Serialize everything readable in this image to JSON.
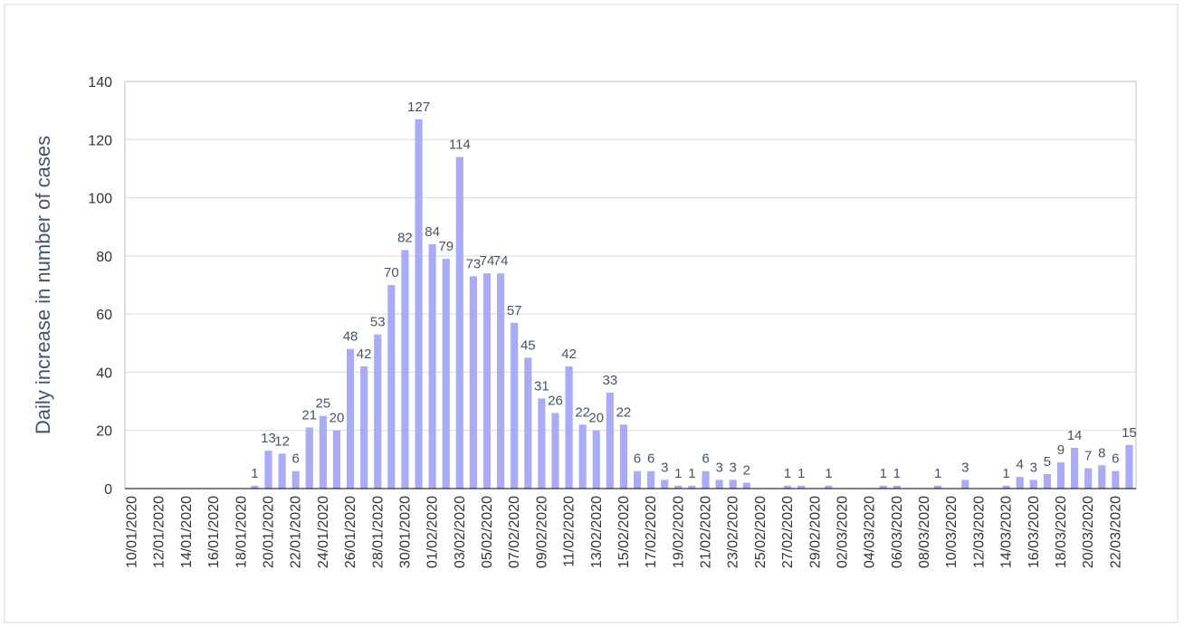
{
  "chart_data": {
    "type": "bar",
    "ylabel": "Daily increase in number of cases",
    "color": "#a9acf5",
    "categories": [
      "10/01/2020",
      null,
      "12/01/2020",
      null,
      "14/01/2020",
      null,
      "16/01/2020",
      null,
      "18/01/2020",
      null,
      "20/01/2020",
      null,
      "22/01/2020",
      null,
      "24/01/2020",
      null,
      "26/01/2020",
      null,
      "28/01/2020",
      null,
      "30/01/2020",
      null,
      "01/02/2020",
      null,
      "03/02/2020",
      null,
      "05/02/2020",
      null,
      "07/02/2020",
      null,
      "09/02/2020",
      null,
      "11/02/2020",
      null,
      "13/02/2020",
      null,
      "15/02/2020",
      null,
      "17/02/2020",
      null,
      "19/02/2020",
      null,
      "21/02/2020",
      null,
      "23/02/2020",
      null,
      "25/02/2020",
      null,
      "27/02/2020",
      null,
      "29/02/2020",
      null,
      "02/03/2020",
      null,
      "04/03/2020",
      null,
      "06/03/2020",
      null,
      "08/03/2020",
      null,
      "10/03/2020",
      null,
      "12/03/2020",
      null,
      "14/03/2020",
      null,
      "16/03/2020",
      null,
      "18/03/2020",
      null,
      "20/03/2020",
      null,
      "22/03/2020",
      null
    ],
    "values": [
      0,
      0,
      0,
      0,
      0,
      0,
      0,
      0,
      0,
      1,
      13,
      12,
      6,
      21,
      25,
      20,
      48,
      42,
      53,
      70,
      82,
      127,
      84,
      79,
      114,
      73,
      74,
      74,
      57,
      45,
      31,
      26,
      42,
      22,
      20,
      33,
      22,
      6,
      6,
      3,
      1,
      1,
      6,
      3,
      3,
      2,
      0,
      0,
      1,
      1,
      0,
      1,
      0,
      0,
      0,
      1,
      1,
      0,
      0,
      1,
      0,
      3,
      0,
      0,
      1,
      4,
      3,
      5,
      9,
      14,
      7,
      8,
      6,
      15
    ],
    "ylim": [
      0,
      140
    ],
    "yticks": [
      0,
      20,
      40,
      60,
      80,
      100,
      120,
      140
    ],
    "grid": true
  }
}
